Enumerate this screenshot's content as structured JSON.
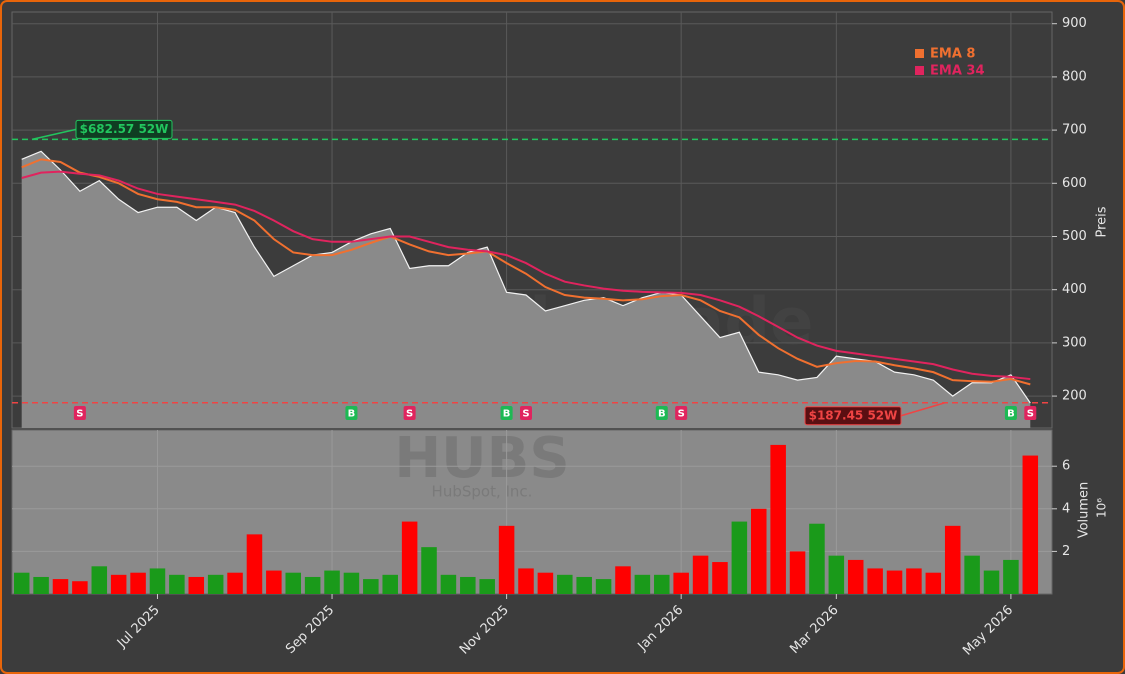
{
  "watermark": {
    "site": "forexsignale.trade",
    "ticker": "HUBS",
    "company": "HubSpot, Inc."
  },
  "chart_data": [
    {
      "type": "line",
      "y_label": "Preis",
      "color": "#8a8a8a",
      "values": [
        645,
        660,
        625,
        585,
        605,
        570,
        545,
        555,
        555,
        530,
        555,
        545,
        480,
        425,
        445,
        465,
        470,
        490,
        505,
        515,
        440,
        445,
        445,
        470,
        480,
        395,
        390,
        360,
        370,
        380,
        385,
        370,
        385,
        395,
        390,
        350,
        310,
        320,
        245,
        240,
        230,
        235,
        275,
        270,
        265,
        245,
        240,
        230,
        200,
        225,
        225,
        240,
        187
      ],
      "series": [
        {
          "name": "EMA 8",
          "color": "#f07030",
          "values": [
            630,
            645,
            640,
            620,
            612,
            600,
            580,
            570,
            565,
            555,
            555,
            550,
            530,
            495,
            470,
            465,
            465,
            475,
            488,
            500,
            485,
            472,
            465,
            468,
            472,
            450,
            430,
            405,
            390,
            385,
            383,
            380,
            382,
            388,
            390,
            380,
            360,
            348,
            315,
            290,
            270,
            255,
            262,
            266,
            265,
            258,
            252,
            245,
            230,
            228,
            227,
            232,
            222
          ]
        },
        {
          "name": "EMA 34",
          "color": "#e0245e",
          "values": [
            610,
            620,
            622,
            618,
            615,
            605,
            590,
            580,
            575,
            570,
            565,
            560,
            548,
            530,
            510,
            495,
            490,
            490,
            495,
            500,
            500,
            490,
            480,
            475,
            472,
            465,
            450,
            430,
            415,
            408,
            402,
            398,
            396,
            395,
            394,
            390,
            380,
            368,
            350,
            330,
            310,
            295,
            285,
            280,
            275,
            270,
            265,
            260,
            250,
            242,
            238,
            236,
            232
          ]
        }
      ],
      "reference_lines": [
        {
          "value": 682.57,
          "label": "$682.57 52W",
          "color": "#22c55e"
        },
        {
          "value": 187.45,
          "label": "$187.45 52W",
          "color": "#ef4444"
        }
      ],
      "signals": [
        null,
        null,
        null,
        "S",
        null,
        null,
        null,
        null,
        null,
        null,
        null,
        null,
        null,
        null,
        null,
        null,
        null,
        "B",
        null,
        null,
        "S",
        null,
        null,
        null,
        null,
        "B",
        "S",
        null,
        null,
        null,
        null,
        null,
        null,
        "B",
        "S",
        null,
        null,
        null,
        null,
        null,
        null,
        null,
        null,
        null,
        null,
        null,
        null,
        null,
        null,
        null,
        null,
        "B",
        "S"
      ],
      "ylim": [
        140,
        922
      ],
      "yticks": [
        200,
        300,
        400,
        500,
        600,
        700,
        800,
        900
      ],
      "grid": true
    },
    {
      "type": "bar",
      "y_label": "Volumen",
      "scale_label": "10⁶",
      "up_color": "#1a9a1a",
      "down_color": "#ff0000",
      "categories": [
        null,
        null,
        null,
        null,
        null,
        null,
        null,
        "Jul 2025",
        null,
        null,
        null,
        null,
        null,
        null,
        null,
        null,
        "Sep 2025",
        null,
        null,
        null,
        null,
        null,
        null,
        null,
        null,
        "Nov 2025",
        null,
        null,
        null,
        null,
        null,
        null,
        null,
        null,
        "Jan 2026",
        null,
        null,
        null,
        null,
        null,
        null,
        null,
        "Mar 2026",
        null,
        null,
        null,
        null,
        null,
        null,
        null,
        null,
        "May 2026",
        null
      ],
      "values": [
        1.0,
        0.8,
        0.7,
        0.6,
        1.3,
        0.9,
        1.0,
        1.2,
        0.9,
        0.8,
        0.9,
        1.0,
        2.8,
        1.1,
        1.0,
        0.8,
        1.1,
        1.0,
        0.7,
        0.9,
        3.4,
        2.2,
        0.9,
        0.8,
        0.7,
        3.2,
        1.2,
        1.0,
        0.9,
        0.8,
        0.7,
        1.3,
        0.9,
        0.9,
        1.0,
        1.8,
        1.5,
        3.4,
        4.0,
        7.0,
        2.0,
        3.3,
        1.8,
        1.6,
        1.2,
        1.1,
        1.2,
        1.0,
        3.2,
        1.8,
        1.1,
        1.6,
        6.5
      ],
      "ylim": [
        0,
        7.7
      ],
      "yticks": [
        2,
        4,
        6
      ],
      "grid": true
    }
  ]
}
